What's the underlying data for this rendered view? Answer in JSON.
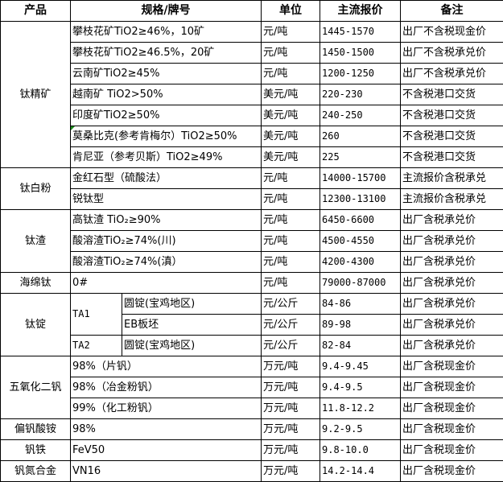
{
  "header": {
    "product": "产品",
    "spec": "规格/牌号",
    "unit": "单位",
    "price": "主流报价",
    "note": "备注"
  },
  "groups": [
    {
      "product": "钛精矿",
      "rows": [
        {
          "spec": "攀枝花矿TiO2≥46%，10矿",
          "unit": "元/吨",
          "price": "1445-1570",
          "note": "出厂不含税现金价"
        },
        {
          "spec": "攀枝花矿TiO2≥46.5%，20矿",
          "unit": "元/吨",
          "price": "1450-1500",
          "note": "出厂不含税承兑价"
        },
        {
          "spec": "云南矿TiO2≥45%",
          "unit": "元/吨",
          "price": "1200-1250",
          "note": "出厂不含税承兑价"
        },
        {
          "spec": "越南矿 TiO2>50%",
          "unit": "美元/吨",
          "price": "220-230",
          "note": "不含税港口交货"
        },
        {
          "spec": "印度矿TiO2≥50%",
          "unit": "美元/吨",
          "price": "240-250",
          "note": "不含税港口交货"
        },
        {
          "spec": "莫桑比克(参考肯梅尔）TiO2≥50%",
          "unit": "美元/吨",
          "price": "260",
          "note": "不含税港口交货",
          "flag": true
        },
        {
          "spec": "肯尼亚（参考贝斯）TiO2≥49%",
          "unit": "美元/吨",
          "price": "225",
          "note": "不含税港口交货"
        }
      ]
    },
    {
      "product": "钛白粉",
      "rows": [
        {
          "spec": "金红石型（硫酸法）",
          "unit": "元/吨",
          "price": "14000-15700",
          "note": "主流报价含税承兑"
        },
        {
          "spec": "锐钛型",
          "unit": "元/吨",
          "price": "12300-13100",
          "note": "主流报价含税承兑"
        }
      ]
    },
    {
      "product": "钛渣",
      "rows": [
        {
          "spec": "高钛渣 TiO₂≥90%",
          "unit": "元/吨",
          "price": "6450-6600",
          "note": "出厂含税承兑价"
        },
        {
          "spec": "酸溶渣TiO₂≥74%(川)",
          "unit": "元/吨",
          "price": "4500-4550",
          "note": "出厂含税承兑价"
        },
        {
          "spec": "酸溶渣TiO₂≥74%(滇）",
          "unit": "元/吨",
          "price": "4200-4300",
          "note": "出厂含税承兑价"
        }
      ]
    },
    {
      "product": "海绵钛",
      "rows": [
        {
          "spec": "0#",
          "unit": "元/吨",
          "price": "79000-87000",
          "note": "出厂含税承兑价"
        }
      ]
    },
    {
      "product": "钛锭",
      "rows": [
        {
          "grade": "TA1",
          "grade_span": 2,
          "spec": "圆锭(宝鸡地区)",
          "unit": "元/公斤",
          "price": "84-86",
          "note": "出厂含税承兑价"
        },
        {
          "spec": "EB板坯",
          "unit": "元/公斤",
          "price": "89-98",
          "note": "出厂含税承兑价"
        },
        {
          "grade": "TA2",
          "grade_span": 1,
          "spec": "圆锭(宝鸡地区)",
          "unit": "元/公斤",
          "price": "82-84",
          "note": "出厂含税承兑价"
        }
      ]
    },
    {
      "product": "五氧化二钒",
      "rows": [
        {
          "spec": "98%（片钒）",
          "unit": "万元/吨",
          "price": "9.4-9.45",
          "note": "出厂含税现金价"
        },
        {
          "spec": "98%（冶金粉钒）",
          "unit": "万元/吨",
          "price": "9.4-9.5",
          "note": "出厂含税现金价"
        },
        {
          "spec": "99%（化工粉钒）",
          "unit": "万元/吨",
          "price": "11.8-12.2",
          "note": "出厂含税现金价"
        }
      ]
    },
    {
      "product": "偏钒酸铵",
      "rows": [
        {
          "spec": "98%",
          "unit": "万元/吨",
          "price": "9.2-9.5",
          "note": "出厂含税现金价"
        }
      ]
    },
    {
      "product": "钒铁",
      "rows": [
        {
          "spec": "FeV50",
          "unit": "万元/吨",
          "price": "9.8-10.0",
          "note": "出厂含税现金价"
        }
      ]
    },
    {
      "product": "钒氮合金",
      "rows": [
        {
          "spec": "VN16",
          "unit": "万元/吨",
          "price": "14.2-14.4",
          "note": "出厂含税现金价"
        }
      ]
    }
  ]
}
